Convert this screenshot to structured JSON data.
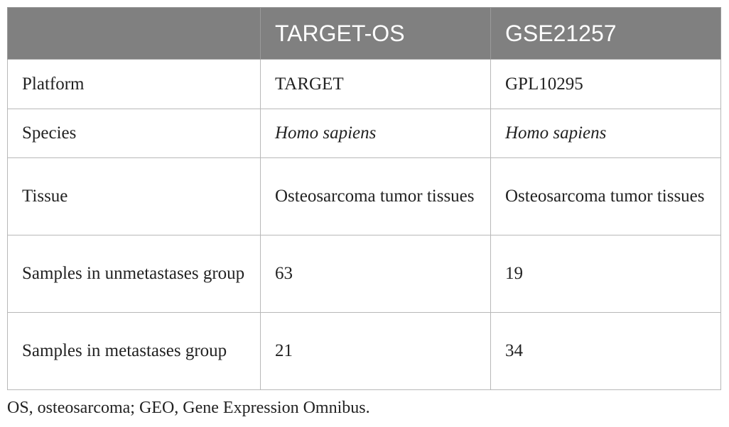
{
  "table": {
    "headers": [
      "",
      "TARGET-OS",
      "GSE21257"
    ],
    "rows": [
      {
        "label": "Platform",
        "target_os": "TARGET",
        "gse21257": "GPL10295"
      },
      {
        "label": "Species",
        "target_os": "Homo sapiens",
        "gse21257": "Homo sapiens"
      },
      {
        "label": "Tissue",
        "target_os": "Osteosarcoma tumor tissues",
        "gse21257": "Osteosarcoma tumor tissues"
      },
      {
        "label": "Samples in unmetastases group",
        "target_os": "63",
        "gse21257": "19"
      },
      {
        "label": "Samples in metastases group",
        "target_os": "21",
        "gse21257": "34"
      }
    ]
  },
  "footnote": "OS, osteosarcoma; GEO, Gene Expression Omnibus."
}
